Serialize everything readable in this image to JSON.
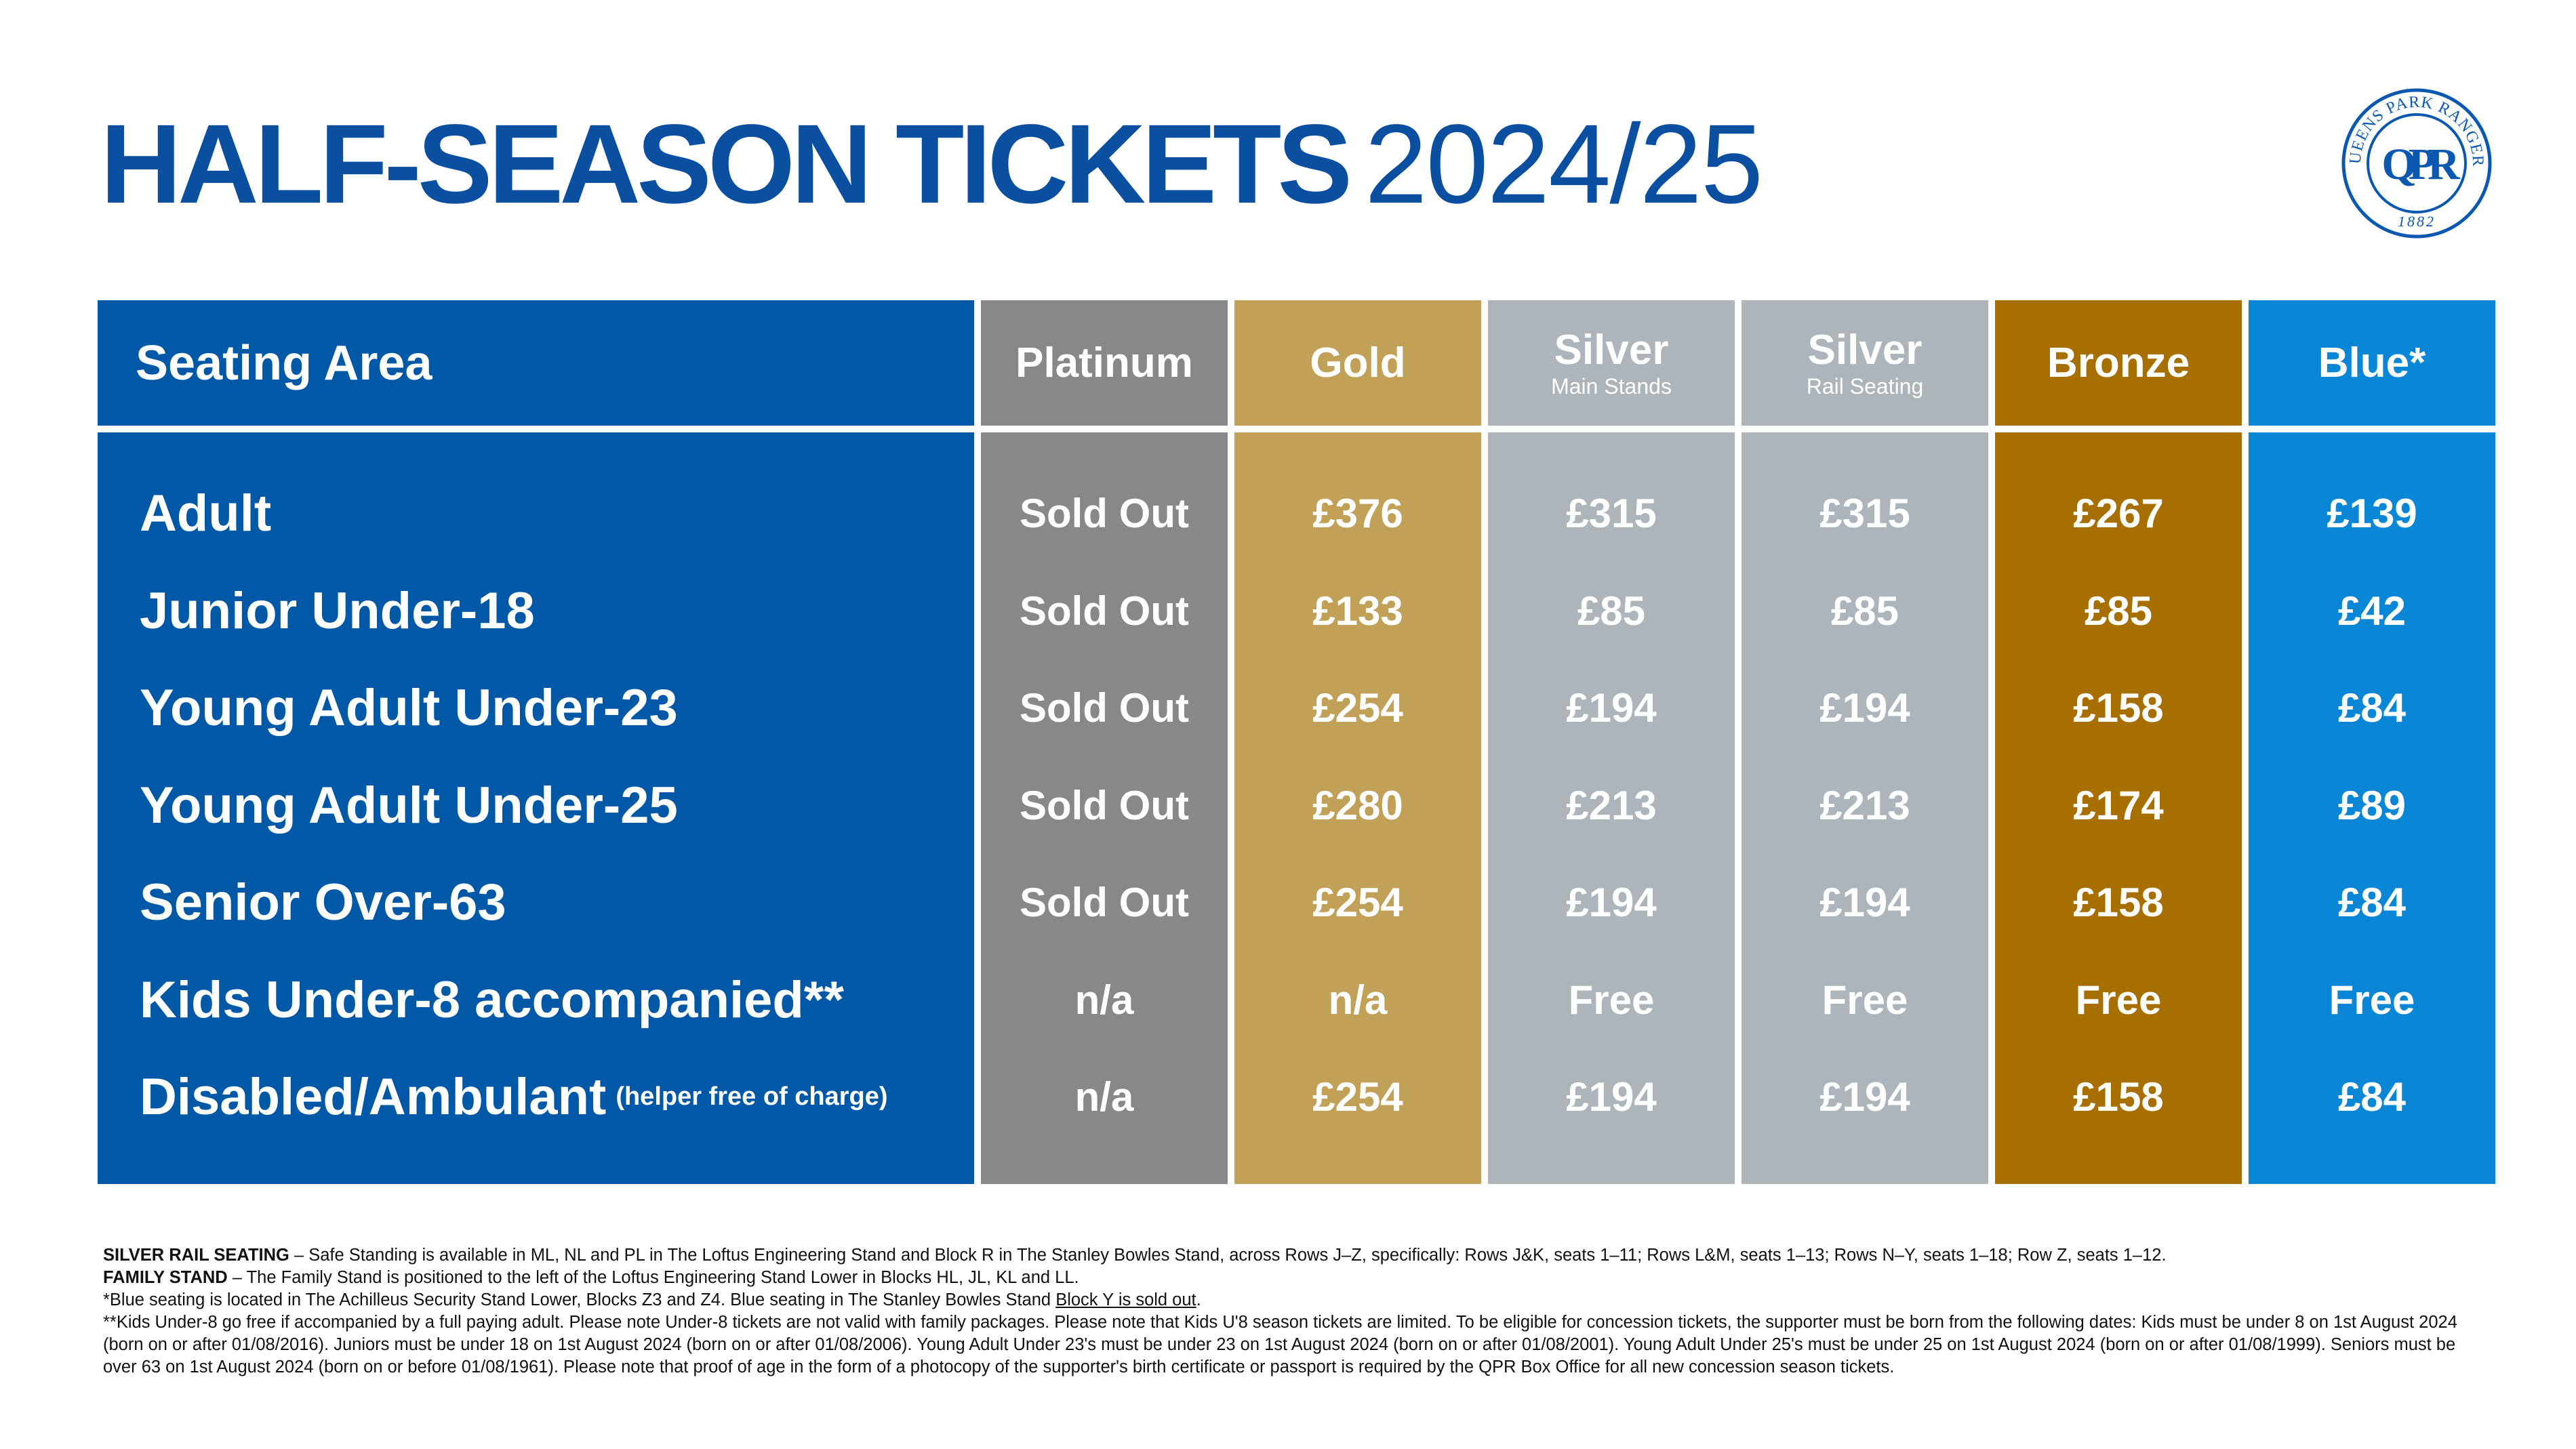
{
  "title": {
    "main": "HALF-SEASON TICKETS",
    "season": "2024/25"
  },
  "logo": {
    "text": "QUEENS PARK RANGERS",
    "monogram": "QPR",
    "year": "1882",
    "color": "#0b58b0"
  },
  "colors": {
    "seating_area": "#0058a6",
    "platinum": "#888888",
    "gold": "#c1a157",
    "silver": "#adb5bb",
    "silver_rail": "#adb5bb",
    "bronze": "#a66f00",
    "blue": "#0a86d6",
    "title": "#0b4fa1"
  },
  "table": {
    "header": {
      "label": "Seating Area",
      "columns": [
        {
          "name": "Platinum",
          "sub": ""
        },
        {
          "name": "Gold",
          "sub": ""
        },
        {
          "name": "Silver",
          "sub": "Main Stands"
        },
        {
          "name": "Silver",
          "sub": "Rail Seating"
        },
        {
          "name": "Bronze",
          "sub": ""
        },
        {
          "name": "Blue*",
          "sub": ""
        }
      ]
    },
    "rows": [
      {
        "label": "Adult",
        "note": "",
        "values": [
          "Sold Out",
          "£376",
          "£315",
          "£315",
          "£267",
          "£139"
        ]
      },
      {
        "label": "Junior Under-18",
        "note": "",
        "values": [
          "Sold Out",
          "£133",
          "£85",
          "£85",
          "£85",
          "£42"
        ]
      },
      {
        "label": "Young Adult Under-23",
        "note": "",
        "values": [
          "Sold Out",
          "£254",
          "£194",
          "£194",
          "£158",
          "£84"
        ]
      },
      {
        "label": "Young Adult Under-25",
        "note": "",
        "values": [
          "Sold Out",
          "£280",
          "£213",
          "£213",
          "£174",
          "£89"
        ]
      },
      {
        "label": "Senior Over-63",
        "note": "",
        "values": [
          "Sold Out",
          "£254",
          "£194",
          "£194",
          "£158",
          "£84"
        ]
      },
      {
        "label": "Kids Under-8 accompanied**",
        "note": "",
        "values": [
          "n/a",
          "n/a",
          "Free",
          "Free",
          "Free",
          "Free"
        ]
      },
      {
        "label": "Disabled/Ambulant",
        "note": "(helper free of charge)",
        "values": [
          "n/a",
          "£254",
          "£194",
          "£194",
          "£158",
          "£84"
        ]
      }
    ]
  },
  "footnotes": {
    "silver_rail_title": "SILVER RAIL SEATING",
    "silver_rail_text": " – Safe Standing is available in ML, NL and PL in The Loftus Engineering Stand and Block R in The Stanley Bowles Stand, across Rows J–Z, specifically: Rows J&K, seats 1–11; Rows L&M, seats 1–13; Rows N–Y, seats 1–18; Row Z, seats 1–12.",
    "family_title": "FAMILY STAND",
    "family_text": " – The Family Stand is positioned to the left of the Loftus Engineering Stand Lower in Blocks HL, JL, KL and LL.",
    "blue_text": "*Blue seating is located in The Achilleus Security Stand Lower, Blocks Z3 and Z4. Blue seating in The Stanley Bowles Stand ",
    "blue_link": "Block Y is sold out",
    "blue_end": ".",
    "kids_text": "**Kids Under-8 go free if accompanied by a full paying adult. Please note Under-8 tickets are not valid with family packages. Please note that Kids U'8 season tickets are limited. To be eligible for concession tickets, the supporter must be born from the following dates: Kids must be under 8 on 1st August 2024 (born on or after 01/08/2016). Juniors must be under 18 on 1st August 2024 (born on or after 01/08/2006). Young Adult Under 23's must be under 23 on 1st August 2024 (born on or after 01/08/2001). Young Adult Under 25's must be under 25 on 1st August 2024 (born on or after 01/08/1999). Seniors must be over 63 on 1st August 2024 (born on or before 01/08/1961). Please note that proof of age in the form of a photocopy of the supporter's birth certificate or passport is required by the QPR Box Office for all new concession season tickets."
  }
}
